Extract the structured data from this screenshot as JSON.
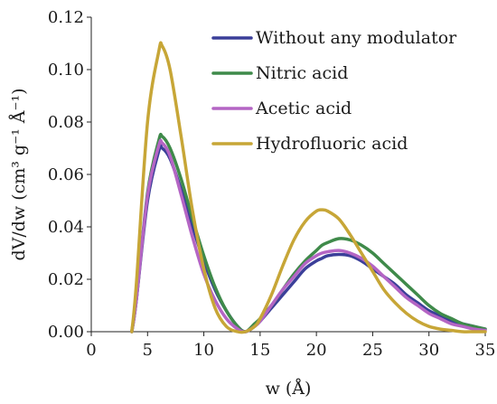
{
  "chart_data": {
    "type": "line",
    "title": "",
    "xlabel": "w (Å)",
    "ylabel": "dV/dw (cm³ g⁻¹ Å⁻¹)",
    "xlim": [
      0,
      35
    ],
    "ylim": [
      0,
      0.12
    ],
    "xticks": [
      "0",
      "5",
      "10",
      "15",
      "20",
      "25",
      "30",
      "35"
    ],
    "yticks": [
      "0.00",
      "0.02",
      "0.04",
      "0.06",
      "0.08",
      "0.10",
      "0.12"
    ],
    "grid": false,
    "legend_position": "top-right",
    "x": [
      3.6,
      4.0,
      5.0,
      6.0,
      6.3,
      7.0,
      8.0,
      9.0,
      10.0,
      11.0,
      12.0,
      13.0,
      13.7,
      14.5,
      15.0,
      16.0,
      17.0,
      18.0,
      19.0,
      20.0,
      20.5,
      21.0,
      22.0,
      23.0,
      24.0,
      25.0,
      26.0,
      27.0,
      28.0,
      29.0,
      30.0,
      31.0,
      32.0,
      33.0,
      34.0,
      35.0
    ],
    "series": [
      {
        "name": "Without any modulator",
        "color": "#3b3f99",
        "values": [
          0.0,
          0.012,
          0.05,
          0.069,
          0.07,
          0.066,
          0.054,
          0.04,
          0.027,
          0.016,
          0.008,
          0.002,
          0.0,
          0.002,
          0.004,
          0.009,
          0.014,
          0.019,
          0.024,
          0.027,
          0.028,
          0.029,
          0.0295,
          0.029,
          0.027,
          0.024,
          0.021,
          0.018,
          0.014,
          0.011,
          0.008,
          0.006,
          0.004,
          0.003,
          0.002,
          0.001
        ]
      },
      {
        "name": "Nitric acid",
        "color": "#3f8a4a",
        "values": [
          0.0,
          0.012,
          0.053,
          0.073,
          0.0745,
          0.07,
          0.058,
          0.043,
          0.029,
          0.017,
          0.008,
          0.002,
          0.0,
          0.003,
          0.005,
          0.01,
          0.016,
          0.022,
          0.027,
          0.031,
          0.033,
          0.034,
          0.0355,
          0.035,
          0.033,
          0.03,
          0.026,
          0.022,
          0.018,
          0.014,
          0.01,
          0.007,
          0.005,
          0.003,
          0.002,
          0.001
        ]
      },
      {
        "name": "Acetic acid",
        "color": "#b465c4",
        "values": [
          0.0,
          0.012,
          0.052,
          0.071,
          0.072,
          0.067,
          0.052,
          0.036,
          0.022,
          0.012,
          0.005,
          0.001,
          0.0,
          0.002,
          0.004,
          0.01,
          0.016,
          0.021,
          0.026,
          0.029,
          0.03,
          0.0305,
          0.031,
          0.03,
          0.028,
          0.025,
          0.021,
          0.017,
          0.013,
          0.01,
          0.007,
          0.005,
          0.003,
          0.002,
          0.001,
          0.0005
        ]
      },
      {
        "name": "Hydrofluoric acid",
        "color": "#c7a637",
        "values": [
          0.0,
          0.018,
          0.08,
          0.107,
          0.109,
          0.1,
          0.074,
          0.046,
          0.024,
          0.009,
          0.002,
          0.0,
          0.0,
          0.002,
          0.005,
          0.014,
          0.025,
          0.035,
          0.042,
          0.046,
          0.0465,
          0.046,
          0.043,
          0.037,
          0.03,
          0.023,
          0.016,
          0.011,
          0.007,
          0.004,
          0.002,
          0.001,
          0.0005,
          0.0,
          0.0,
          0.0
        ]
      }
    ]
  }
}
